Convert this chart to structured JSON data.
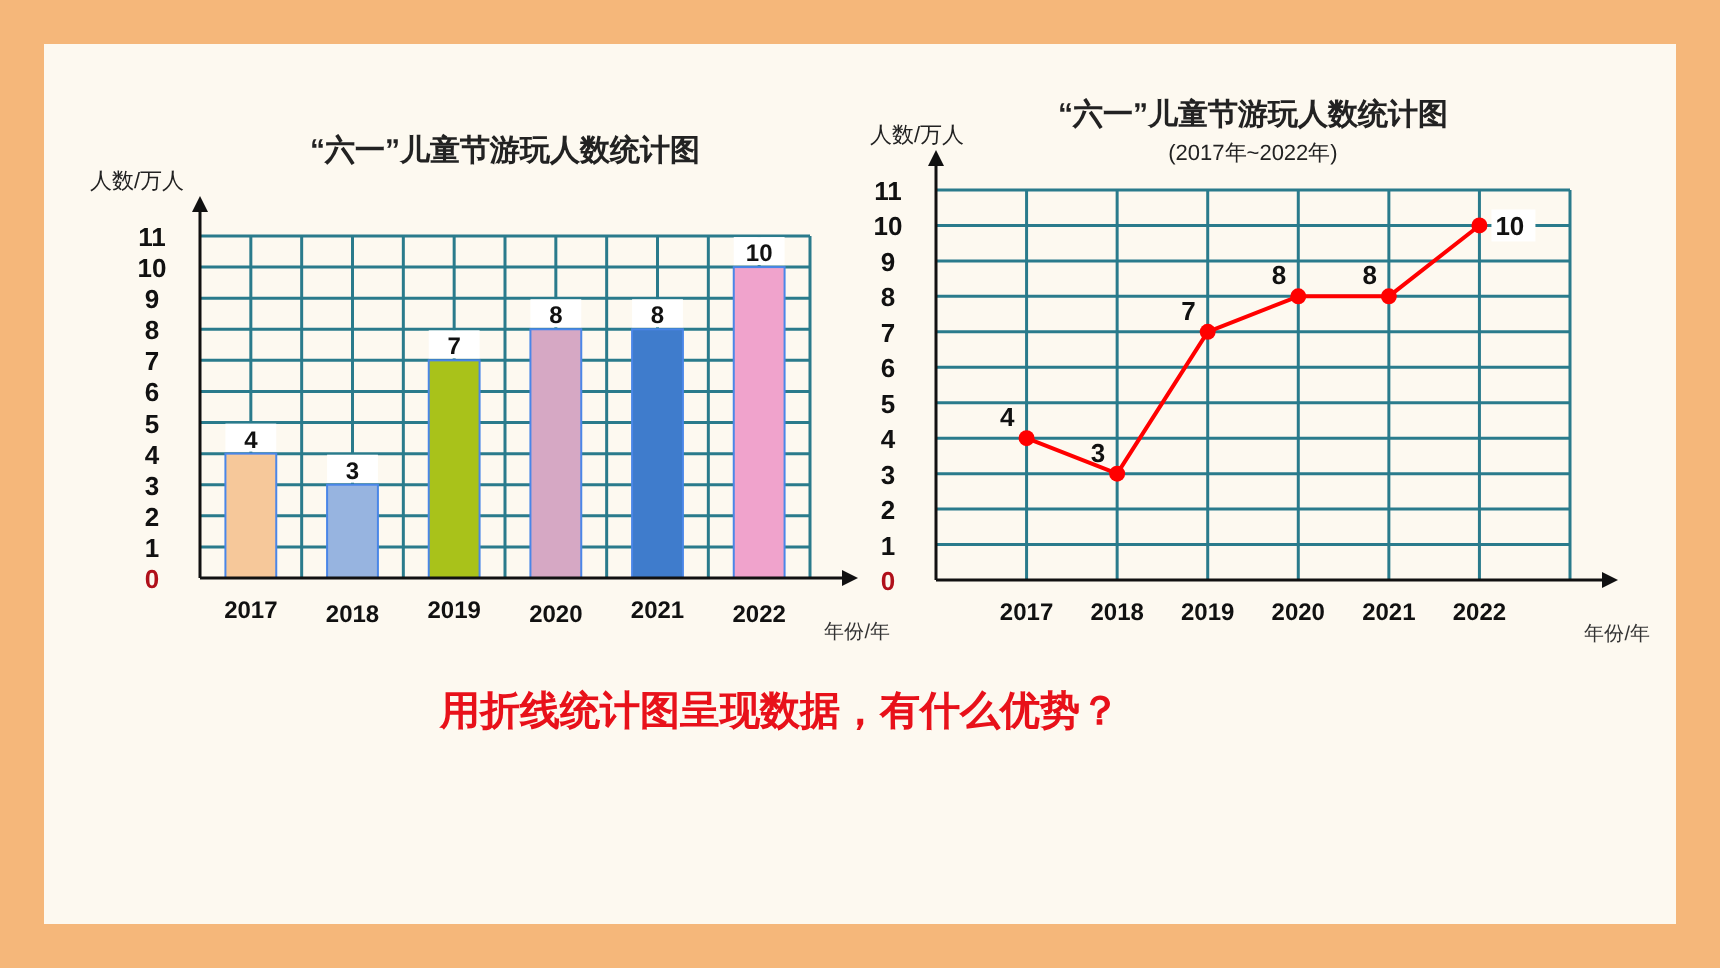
{
  "chart_data": [
    {
      "type": "bar",
      "title": "“六一”儿童节游玩人数统计图",
      "ylabel": "人数/万人",
      "xlabel": "年份/年",
      "categories": [
        "2017",
        "2018",
        "2019",
        "2020",
        "2021",
        "2022"
      ],
      "values": [
        4,
        3,
        7,
        8,
        8,
        10
      ],
      "colors": [
        "#f6c89a",
        "#97b4e0",
        "#a9c21a",
        "#d6a8c4",
        "#3f7ccc",
        "#f0a3cc"
      ],
      "ylim": [
        0,
        11
      ],
      "yticks": [
        0,
        1,
        2,
        3,
        4,
        5,
        6,
        7,
        8,
        9,
        10,
        11
      ],
      "grid": true,
      "data_labels": true,
      "annotations": [
        "用折线统计图呈现数据，有什么优势？"
      ]
    },
    {
      "type": "line",
      "title": "“六一”儿童节游玩人数统计图",
      "subtitle": "(2017年~2022年)",
      "ylabel": "人数/万人",
      "xlabel": "年份/年",
      "categories": [
        "2017",
        "2018",
        "2019",
        "2020",
        "2021",
        "2022"
      ],
      "series": [
        {
          "color": "#ff0000",
          "values": [
            4,
            3,
            7,
            8,
            8,
            10
          ]
        }
      ],
      "ylim": [
        0,
        11
      ],
      "yticks": [
        0,
        1,
        2,
        3,
        4,
        5,
        6,
        7,
        8,
        9,
        10,
        11
      ],
      "grid": true,
      "data_labels": true,
      "marker": "circle"
    }
  ]
}
